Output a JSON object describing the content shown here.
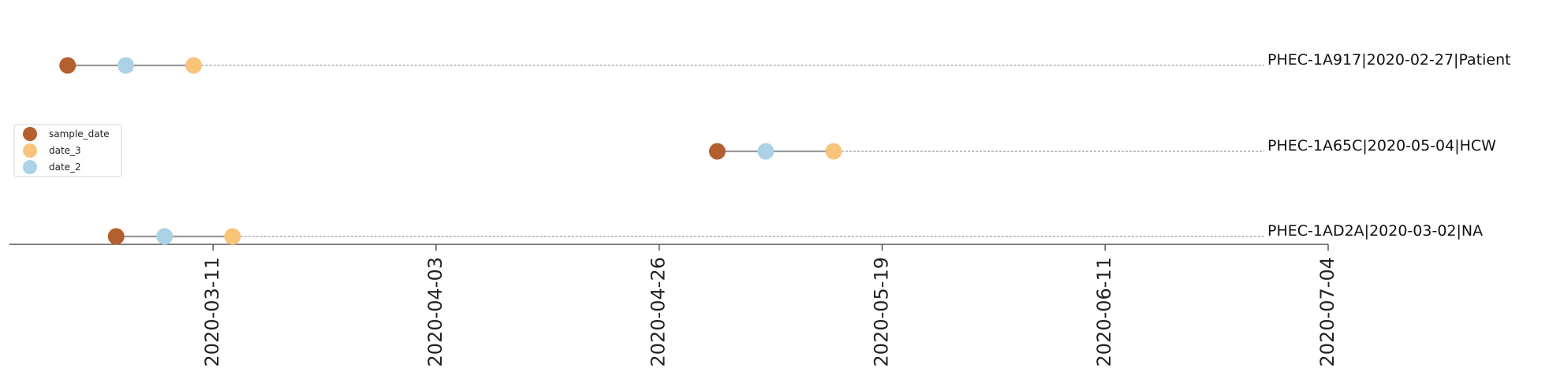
{
  "chart_data": {
    "type": "scatter",
    "title": "",
    "xlabel": "",
    "ylabel": "",
    "x_axis": {
      "type": "date",
      "range": [
        "2020-02-19",
        "2020-07-04"
      ],
      "ticks": [
        "2020-03-11",
        "2020-04-03",
        "2020-04-26",
        "2020-05-19",
        "2020-06-11",
        "2020-07-04"
      ]
    },
    "grid": false,
    "legend_position": "center-left",
    "series": [
      {
        "name": "sample_date",
        "color": "#b35f2e"
      },
      {
        "name": "date_3",
        "color": "#f9c47a"
      },
      {
        "name": "date_2",
        "color": "#abd2e6"
      }
    ],
    "rows": [
      {
        "label": "PHEC-1A917|2020-02-27|Patient",
        "sample_date": "2020-02-25",
        "date_2": "2020-03-02",
        "date_3": "2020-03-09"
      },
      {
        "label": "PHEC-1A65C|2020-05-04|HCW",
        "sample_date": "2020-05-02",
        "date_2": "2020-05-07",
        "date_3": "2020-05-14"
      },
      {
        "label": "PHEC-1AD2A|2020-03-02|NA",
        "sample_date": "2020-03-01",
        "date_2": "2020-03-06",
        "date_3": "2020-03-13"
      }
    ]
  }
}
